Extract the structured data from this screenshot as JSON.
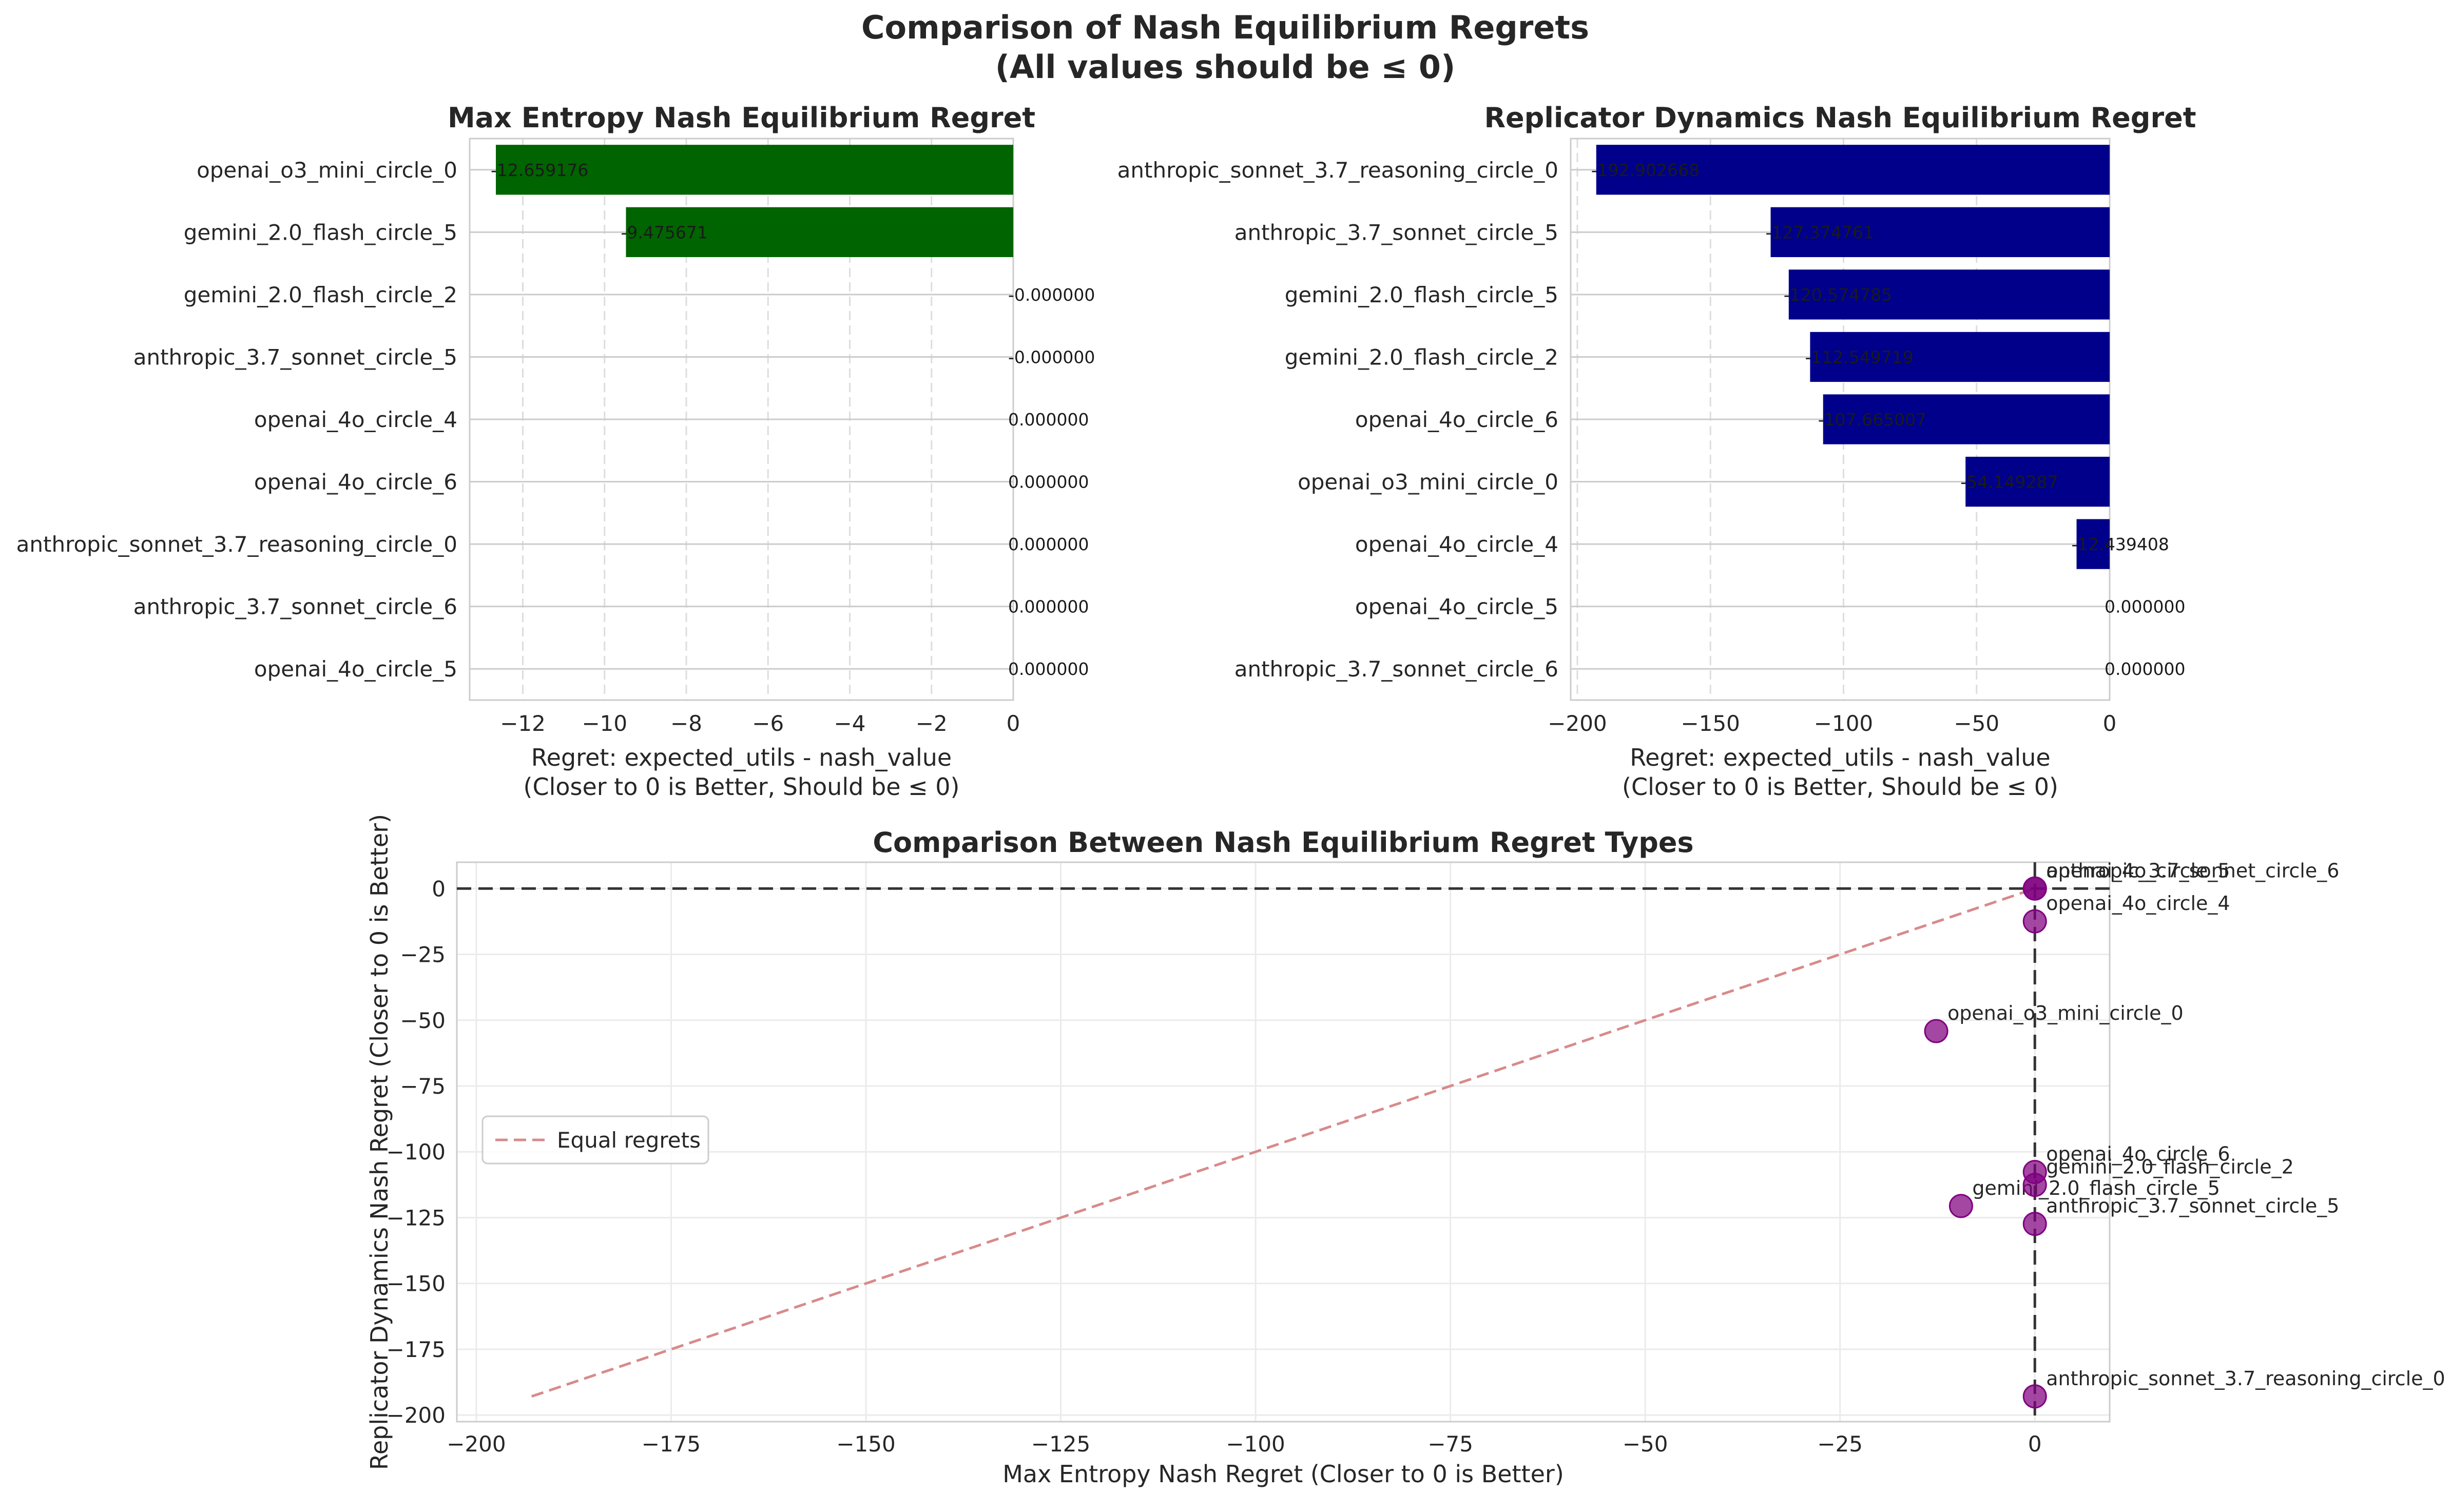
{
  "title": "Comparison of Nash Equilibrium Regrets",
  "subtitle": "(All values should be ≤ 0)",
  "colors": {
    "max_entropy_bar": "#006400",
    "replicator_bar": "#00008b",
    "scatter_point": "#800080",
    "equal_line": "#d88a8a",
    "grid": "#dddddd",
    "reference_line": "#333333"
  },
  "chart_data": [
    {
      "type": "bar",
      "orientation": "horizontal",
      "title": "Max Entropy Nash Equilibrium Regret",
      "xlabel": "Regret: expected_utils - nash_value",
      "xlabel2": "(Closer to 0 is Better, Should be ≤ 0)",
      "xlim": [
        -13.3,
        0
      ],
      "xticks": [
        -12,
        -10,
        -8,
        -6,
        -4,
        -2,
        0
      ],
      "grid": "vertical dashed",
      "categories": [
        "openai_o3_mini_circle_0",
        "gemini_2.0_flash_circle_5",
        "gemini_2.0_flash_circle_2",
        "anthropic_3.7_sonnet_circle_5",
        "openai_4o_circle_4",
        "openai_4o_circle_6",
        "anthropic_sonnet_3.7_reasoning_circle_0",
        "anthropic_3.7_sonnet_circle_6",
        "openai_4o_circle_5"
      ],
      "values": [
        -12.659176,
        -9.475671,
        -0.0,
        -0.0,
        0.0,
        0.0,
        0.0,
        0.0,
        0.0
      ],
      "labels": [
        "-12.659176",
        "-9.475671",
        "-0.000000",
        "-0.000000",
        "0.000000",
        "0.000000",
        "0.000000",
        "0.000000",
        "0.000000"
      ]
    },
    {
      "type": "bar",
      "orientation": "horizontal",
      "title": "Replicator Dynamics Nash Equilibrium Regret",
      "xlabel": "Regret: expected_utils - nash_value",
      "xlabel2": "(Closer to 0 is Better, Should be ≤ 0)",
      "xlim": [
        -202.5,
        0
      ],
      "xticks": [
        -200,
        -150,
        -100,
        -50,
        0
      ],
      "grid": "vertical dashed",
      "categories": [
        "anthropic_sonnet_3.7_reasoning_circle_0",
        "anthropic_3.7_sonnet_circle_5",
        "gemini_2.0_flash_circle_5",
        "gemini_2.0_flash_circle_2",
        "openai_4o_circle_6",
        "openai_o3_mini_circle_0",
        "openai_4o_circle_4",
        "openai_4o_circle_5",
        "anthropic_3.7_sonnet_circle_6"
      ],
      "values": [
        -192.902668,
        -127.374761,
        -120.574785,
        -112.549719,
        -107.665007,
        -54.149287,
        -12.439408,
        0.0,
        0.0
      ],
      "labels": [
        "-192.902668",
        "-127.374761",
        "-120.574785",
        "-112.549719",
        "-107.665007",
        "-54.149287",
        "-12.439408",
        "0.000000",
        "0.000000"
      ]
    },
    {
      "type": "scatter",
      "title": "Comparison Between Nash Equilibrium Regret Types",
      "xlabel": "Max Entropy Nash Regret (Closer to 0 is Better)",
      "ylabel": "Replicator Dynamics Nash Regret (Closer to 0 is Better)",
      "xlim": [
        -202.5,
        9.6
      ],
      "ylim": [
        -202.5,
        10
      ],
      "xticks": [
        -200,
        -175,
        -150,
        -125,
        -100,
        -75,
        -50,
        -25,
        0
      ],
      "yticks": [
        0,
        -25,
        -50,
        -75,
        -100,
        -125,
        -150,
        -175,
        -200
      ],
      "grid": true,
      "legend": {
        "position": "center-left",
        "entries": [
          "Equal regrets"
        ]
      },
      "reference_lines": {
        "horizontal_y": 0,
        "vertical_x": 0
      },
      "equal_line": {
        "from": -192.902668,
        "to": 0
      },
      "points": [
        {
          "label": "openai_o3_mini_circle_0",
          "x": -12.659176,
          "y": -54.149287
        },
        {
          "label": "gemini_2.0_flash_circle_5",
          "x": -9.475671,
          "y": -120.574785
        },
        {
          "label": "gemini_2.0_flash_circle_2",
          "x": 0.0,
          "y": -112.549719
        },
        {
          "label": "anthropic_3.7_sonnet_circle_5",
          "x": 0.0,
          "y": -127.374761
        },
        {
          "label": "openai_4o_circle_4",
          "x": 0.0,
          "y": -12.439408
        },
        {
          "label": "openai_4o_circle_6",
          "x": 0.0,
          "y": -107.665007
        },
        {
          "label": "anthropic_sonnet_3.7_reasoning_circle_0",
          "x": 0.0,
          "y": -192.902668
        },
        {
          "label": "anthropic_3.7_sonnet_circle_6",
          "x": 0.0,
          "y": 0.0
        },
        {
          "label": "openai_4o_circle_5",
          "x": 0.0,
          "y": 0.0
        }
      ]
    }
  ]
}
